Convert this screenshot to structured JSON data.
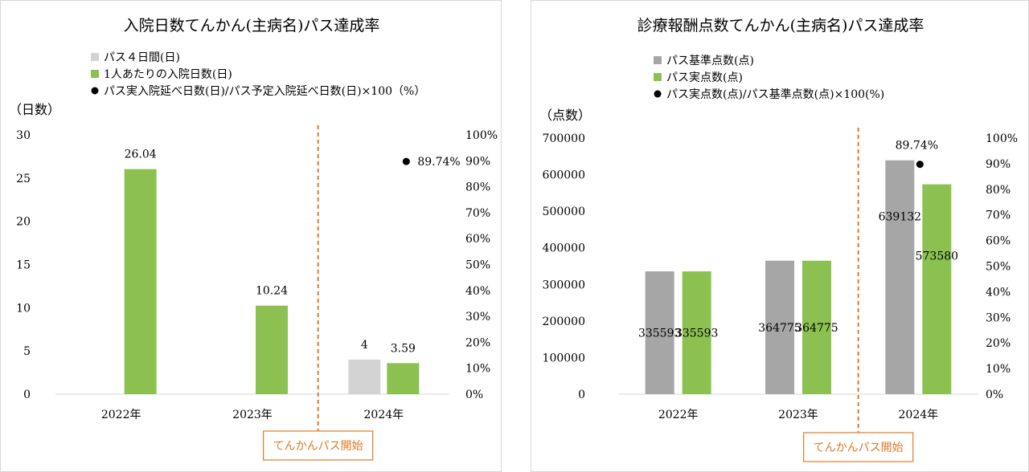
{
  "colors": {
    "gray": "#a6a6a6",
    "light_gray": "#d3d3d3",
    "green": "#8cc152",
    "orange": "#e07a25",
    "dot": "#000000"
  },
  "chart_data": [
    {
      "type": "bar",
      "title": "入院日数てんかん(主病名)パス達成率",
      "categories": [
        "2022年",
        "2023年",
        "2024年"
      ],
      "series": [
        {
          "name": "パス４日間(日)",
          "values": [
            null,
            null,
            4
          ],
          "color": "#d3d3d3",
          "axis": "left"
        },
        {
          "name": "1人あたりの入院日数(日)",
          "values": [
            26.04,
            10.24,
            3.59
          ],
          "color": "#8cc152",
          "axis": "left"
        },
        {
          "name": "パス実入院延べ日数(日)/パス予定入院延べ日数(日)×100（%）",
          "values": [
            null,
            null,
            89.74
          ],
          "marker": "dot",
          "axis": "right"
        }
      ],
      "data_labels": [
        [
          "",
          "",
          "4"
        ],
        [
          "26.04",
          "10.24",
          "3.59"
        ],
        [
          "",
          "",
          "89.74%"
        ]
      ],
      "ylabel": "（日数）",
      "ylim": [
        0,
        30
      ],
      "yticks": [
        "0",
        "5",
        "10",
        "15",
        "20",
        "25",
        "30"
      ],
      "y2lim": [
        0,
        100
      ],
      "y2ticks": [
        "0%",
        "10%",
        "20%",
        "30%",
        "40%",
        "50%",
        "60%",
        "70%",
        "80%",
        "90%",
        "100%"
      ],
      "annotation": {
        "text": "てんかんパス開始",
        "between_categories": [
          "2023年",
          "2024年"
        ]
      },
      "legend_position": "top-left",
      "grid": false
    },
    {
      "type": "bar",
      "title": "診療報酬点数てんかん(主病名)パス達成率",
      "categories": [
        "2022年",
        "2023年",
        "2024年"
      ],
      "series": [
        {
          "name": "パス基準点数(点)",
          "values": [
            335593,
            364775,
            639132
          ],
          "color": "#a6a6a6",
          "axis": "left"
        },
        {
          "name": "パス実点数(点)",
          "values": [
            335593,
            364775,
            573580
          ],
          "color": "#8cc152",
          "axis": "left"
        },
        {
          "name": "パス実点数(点)/パス基準点数(点)×100(%)",
          "values": [
            null,
            null,
            89.74
          ],
          "marker": "dot",
          "axis": "right"
        }
      ],
      "data_labels": [
        [
          "335593",
          "364775",
          "639132"
        ],
        [
          "335593",
          "364775",
          "573580"
        ],
        [
          "",
          "",
          "89.74%"
        ]
      ],
      "ylabel": "（点数）",
      "ylim": [
        0,
        700000
      ],
      "yticks": [
        "0",
        "100000",
        "200000",
        "300000",
        "400000",
        "500000",
        "600000",
        "700000"
      ],
      "y2lim": [
        0,
        100
      ],
      "y2ticks": [
        "0%",
        "10%",
        "20%",
        "30%",
        "40%",
        "50%",
        "60%",
        "70%",
        "80%",
        "90%",
        "100%"
      ],
      "annotation": {
        "text": "てんかんパス開始",
        "between_categories": [
          "2023年",
          "2024年"
        ]
      },
      "legend_position": "top-left",
      "grid": false
    }
  ]
}
